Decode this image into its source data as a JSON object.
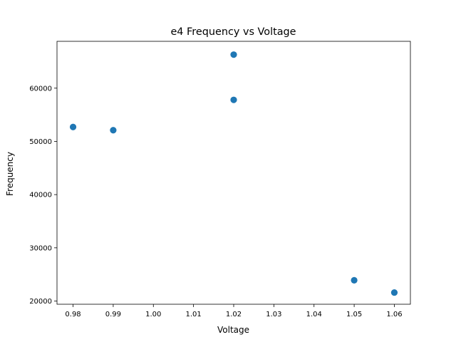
{
  "chart_data": {
    "type": "scatter",
    "title": "e4 Frequency vs Voltage",
    "xlabel": "Voltage",
    "ylabel": "Frequency",
    "xlim": [
      0.976,
      1.064
    ],
    "ylim": [
      19400,
      68800
    ],
    "xticks": [
      0.98,
      0.99,
      1.0,
      1.01,
      1.02,
      1.03,
      1.04,
      1.05,
      1.06
    ],
    "xtick_labels": [
      "0.98",
      "0.99",
      "1.00",
      "1.01",
      "1.02",
      "1.03",
      "1.04",
      "1.05",
      "1.06"
    ],
    "yticks": [
      20000,
      30000,
      40000,
      50000,
      60000
    ],
    "ytick_labels": [
      "20000",
      "30000",
      "40000",
      "50000",
      "60000"
    ],
    "grid": false,
    "marker_color": "#1f77b4",
    "points": [
      {
        "x": 0.98,
        "y": 52700
      },
      {
        "x": 0.99,
        "y": 52100
      },
      {
        "x": 1.02,
        "y": 66300
      },
      {
        "x": 1.02,
        "y": 57800
      },
      {
        "x": 1.05,
        "y": 23900
      },
      {
        "x": 1.06,
        "y": 21600
      }
    ]
  }
}
